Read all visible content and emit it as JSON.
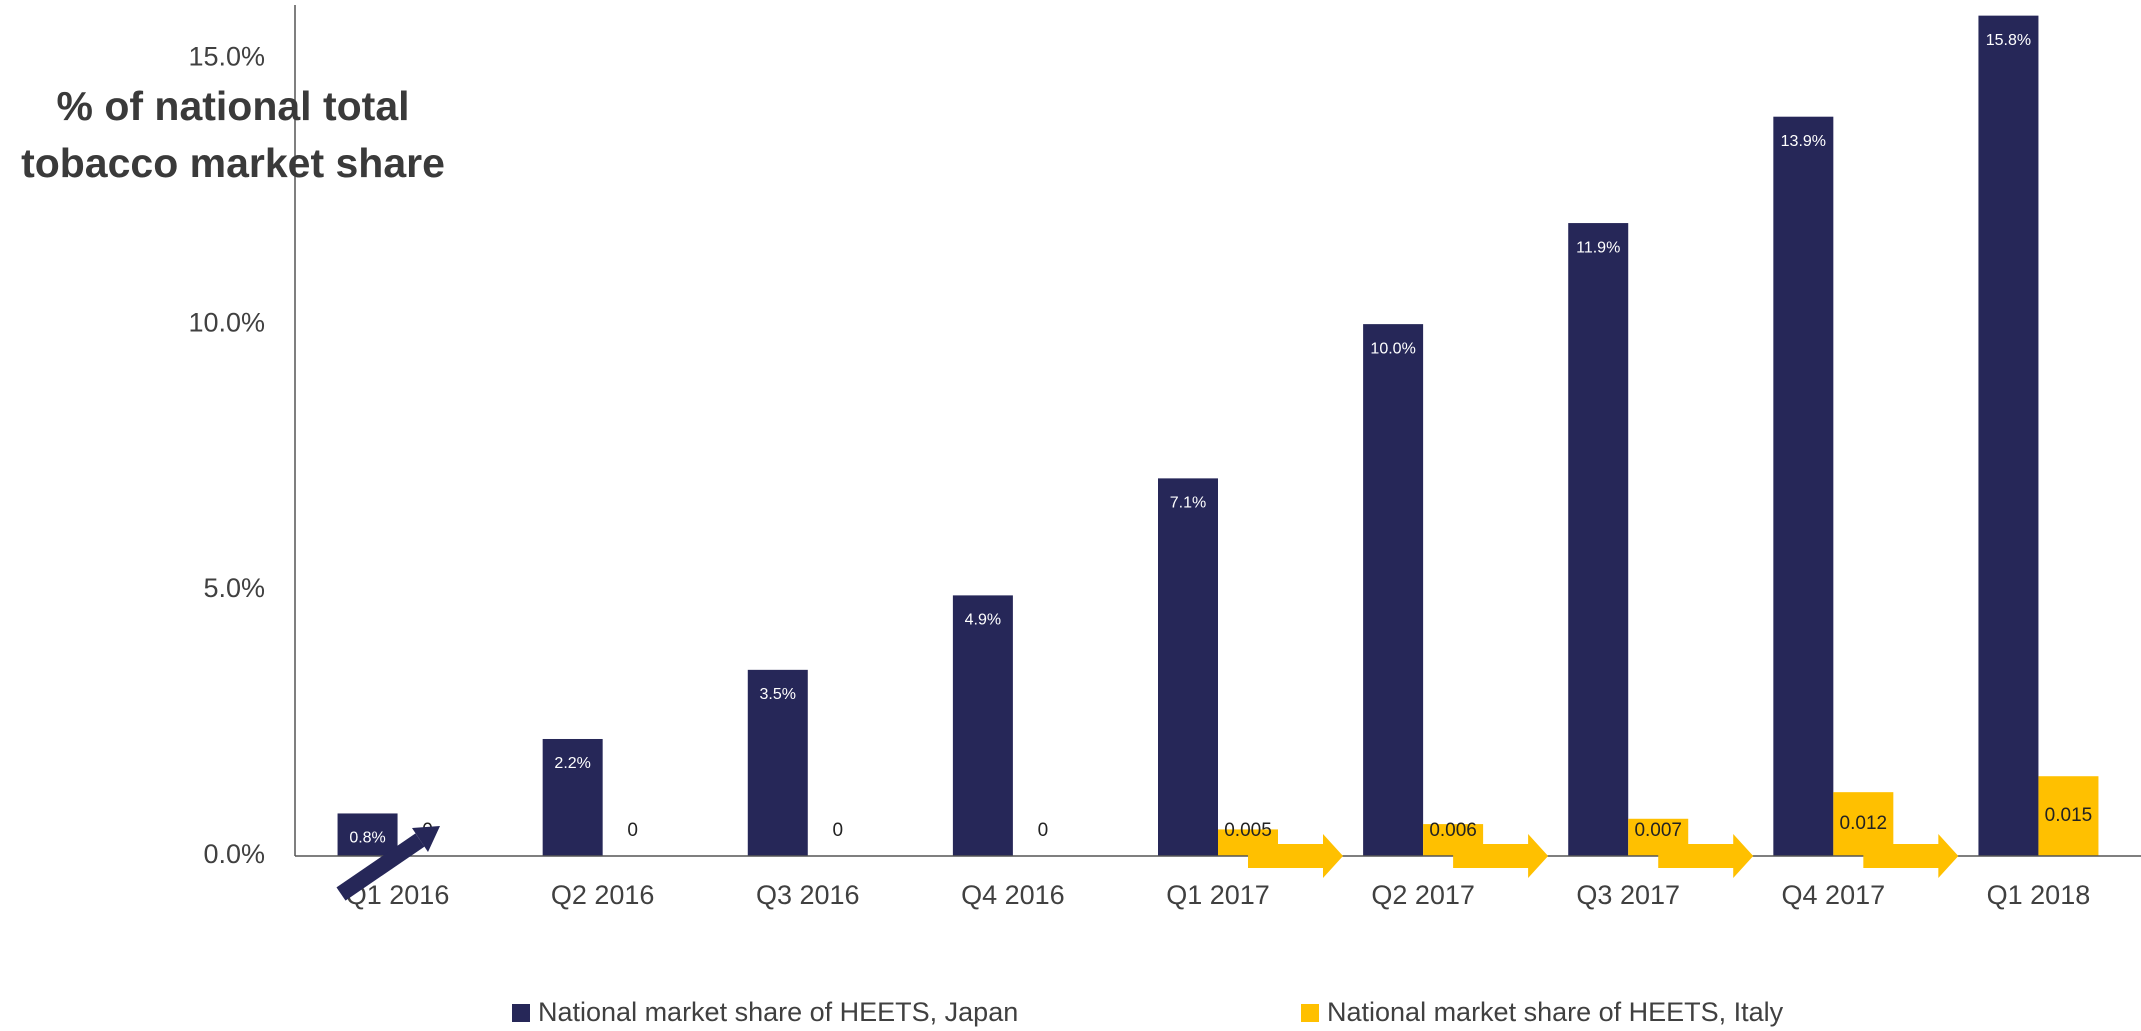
{
  "chart_data": {
    "type": "bar",
    "title": "% of national total tobacco market share",
    "categories": [
      "Q1 2016",
      "Q2 2016",
      "Q3 2016",
      "Q4 2016",
      "Q1 2017",
      "Q2 2017",
      "Q3 2017",
      "Q4 2017",
      "Q1 2018"
    ],
    "series": [
      {
        "name": "National market share of HEETS, Japan",
        "color": "#262758",
        "values": [
          0.8,
          2.2,
          3.5,
          4.9,
          7.1,
          10.0,
          11.9,
          13.9,
          15.8
        ],
        "value_labels": [
          "0.8%",
          "2.2%",
          "3.5%",
          "4.9%",
          "7.1%",
          "10.0%",
          "11.9%",
          "13.9%",
          "15.8%"
        ]
      },
      {
        "name": "National market share of HEETS, Italy",
        "color": "#FFC000",
        "values": [
          0,
          0,
          0,
          0,
          0.5,
          0.6,
          0.7,
          1.2,
          1.5
        ],
        "value_labels": [
          "0",
          "0",
          "0",
          "0",
          "0.005",
          "0.006",
          "0.007",
          "0.012",
          "0.015"
        ]
      }
    ],
    "ylim": [
      0,
      16
    ],
    "yticks": [
      {
        "value": 0,
        "label": "0.0%"
      },
      {
        "value": 5,
        "label": "5.0%"
      },
      {
        "value": 10,
        "label": "10.0%"
      },
      {
        "value": 15,
        "label": "15.0%"
      }
    ],
    "grid": false
  }
}
